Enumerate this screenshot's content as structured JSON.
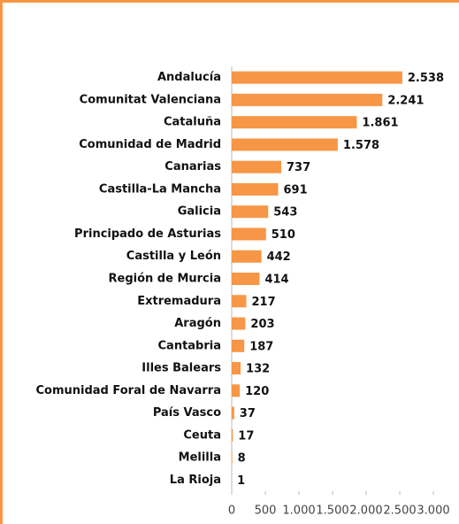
{
  "chart_data": {
    "type": "bar",
    "orientation": "horizontal",
    "categories": [
      "Andalucía",
      "Comunitat Valenciana",
      "Cataluña",
      "Comunidad de Madrid",
      "Canarias",
      "Castilla-La Mancha",
      "Galicia",
      "Principado de Asturias",
      "Castilla y León",
      "Región de Murcia",
      "Extremadura",
      "Aragón",
      "Cantabria",
      "Illes Balears",
      "Comunidad Foral de Navarra",
      "País Vasco",
      "Ceuta",
      "Melilla",
      "La Rioja"
    ],
    "values": [
      2538,
      2241,
      1861,
      1578,
      737,
      691,
      543,
      510,
      442,
      414,
      217,
      203,
      187,
      132,
      120,
      37,
      17,
      8,
      1
    ],
    "value_labels": [
      "2.538",
      "2.241",
      "1.861",
      "1.578",
      "737",
      "691",
      "543",
      "510",
      "442",
      "414",
      "217",
      "203",
      "187",
      "132",
      "120",
      "37",
      "17",
      "8",
      "1"
    ],
    "color": "#f79646",
    "xlim": [
      0,
      3000
    ],
    "xticks": [
      0,
      500,
      {
        "value": 1000,
        "label": "1.000"
      },
      {
        "value": 1500,
        "label": "1.500"
      },
      {
        "value": 2000,
        "label": "2.000"
      },
      {
        "value": 2500,
        "label": "2.500"
      },
      {
        "value": 3000,
        "label": "3.000"
      }
    ],
    "grid": false
  }
}
